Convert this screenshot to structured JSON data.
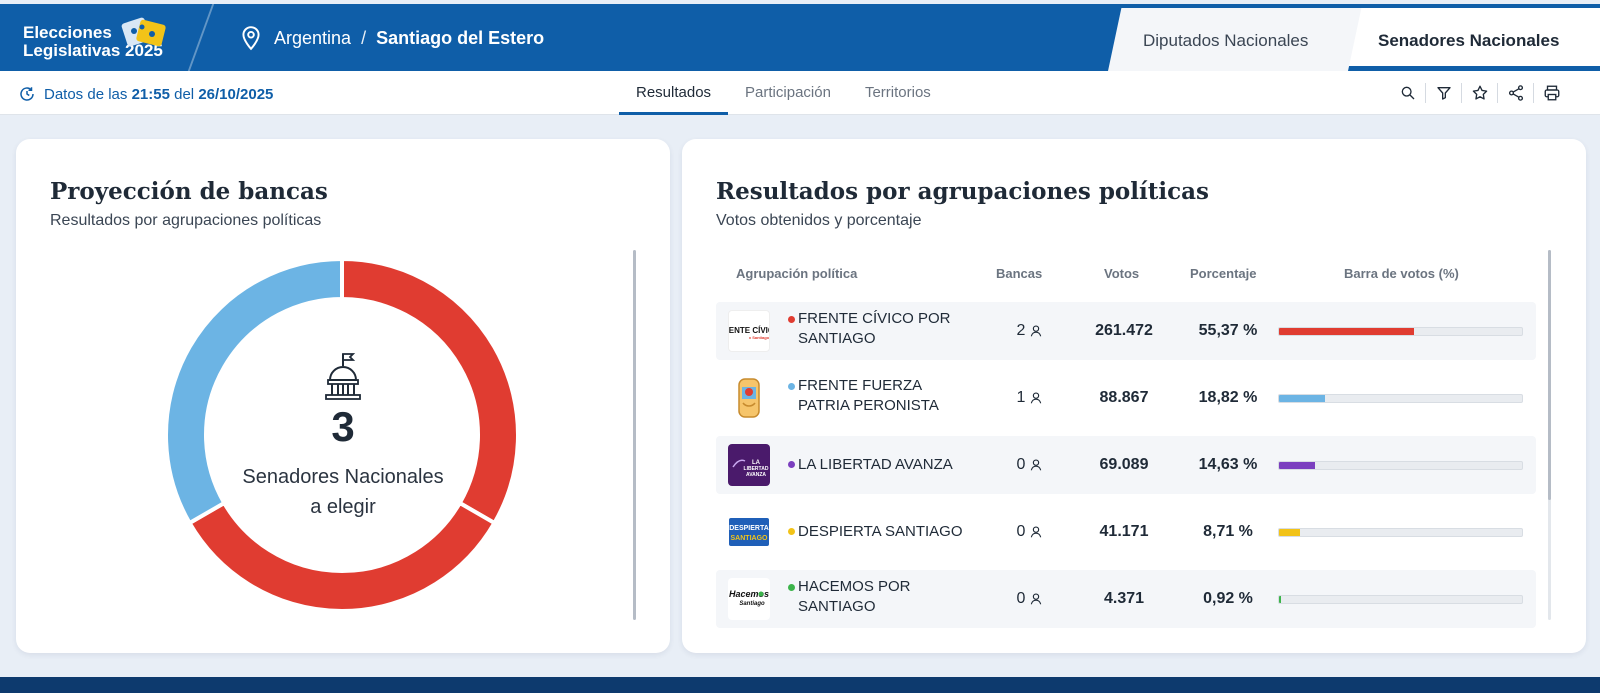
{
  "header": {
    "brand_line1": "Elecciones",
    "brand_line2": "Legislativas 2025",
    "country": "Argentina",
    "separator": "/",
    "province": "Santiago del Estero",
    "tab_diputados": "Diputados Nacionales",
    "tab_senadores": "Senadores Nacionales",
    "active_tab": "Senadores Nacionales"
  },
  "subbar": {
    "updated_prefix": "Datos de las",
    "updated_time": "21:55",
    "updated_mid": "del",
    "updated_date": "26/10/2025",
    "tabs": [
      "Resultados",
      "Participación",
      "Territorios"
    ],
    "active_tab": "Resultados",
    "tool_icons": [
      "search-icon",
      "filter-icon",
      "star-icon",
      "share-icon",
      "print-icon"
    ]
  },
  "projection": {
    "title": "Proyección de bancas",
    "subtitle": "Resultados por agrupaciones políticas",
    "total_seats": "3",
    "label_line1": "Senadores Nacionales",
    "label_line2": "a elegir",
    "seat_colors": [
      "#e03c31",
      "#e03c31",
      "#6cb4e4"
    ]
  },
  "results": {
    "title": "Resultados por agrupaciones políticas",
    "subtitle": "Votos obtenidos y porcentaje",
    "columns": {
      "party": "Agrupación política",
      "bancas": "Bancas",
      "votos": "Votos",
      "porcentaje": "Porcentaje",
      "barra": "Barra de votos (%)"
    },
    "rows": [
      {
        "logo_text": "FRENTE CÍVICO",
        "name_line1": "FRENTE CÍVICO POR",
        "name_line2": "SANTIAGO",
        "bancas": "2",
        "votos": "261.472",
        "pct": "55,37 %",
        "pct_value": 55.37,
        "color": "#e03c31"
      },
      {
        "logo_text": "",
        "name_line1": "FRENTE FUERZA",
        "name_line2": "PATRIA PERONISTA",
        "bancas": "1",
        "votos": "88.867",
        "pct": "18,82 %",
        "pct_value": 18.82,
        "color": "#6cb4e4"
      },
      {
        "logo_text": "LA LIBERTAD AVANZA",
        "name_line1": "LA LIBERTAD AVANZA",
        "name_line2": "",
        "bancas": "0",
        "votos": "69.089",
        "pct": "14,63 %",
        "pct_value": 14.63,
        "color": "#7b3fbf"
      },
      {
        "logo_text": "DESPIERTA SANTIAGO",
        "name_line1": "DESPIERTA SANTIAGO",
        "name_line2": "",
        "bancas": "0",
        "votos": "41.171",
        "pct": "8,71 %",
        "pct_value": 8.71,
        "color": "#f2c318"
      },
      {
        "logo_text": "Hacemos por Santiago",
        "name_line1": "HACEMOS POR",
        "name_line2": "SANTIAGO",
        "bancas": "0",
        "votos": "4.371",
        "pct": "0,92 %",
        "pct_value": 0.92,
        "color": "#3cb44b"
      }
    ]
  }
}
